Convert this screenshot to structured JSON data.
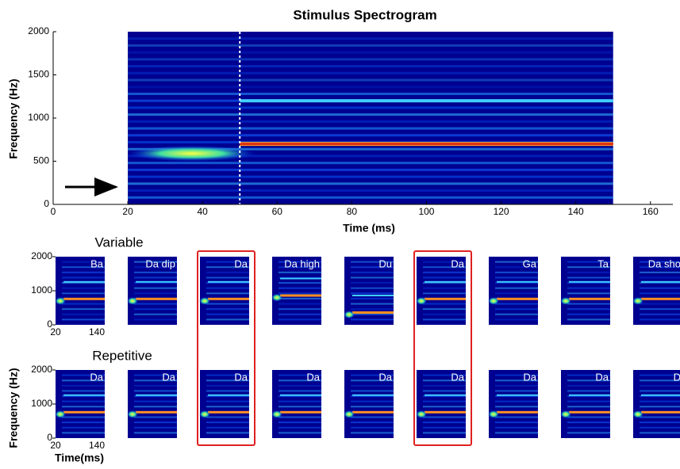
{
  "chart_data": [
    {
      "type": "spectrogram",
      "title": "Stimulus Spectrogram",
      "x_label": "Time (ms)",
      "y_label": "Frequency (Hz)",
      "xlim": [
        0,
        166
      ],
      "xticks": [
        0,
        20,
        40,
        60,
        80,
        100,
        120,
        140,
        160
      ],
      "ylim": [
        0,
        2000
      ],
      "yticks": [
        0,
        500,
        1000,
        1500,
        2000
      ],
      "time_range": [
        20,
        150
      ],
      "marker_time": 50
    },
    {
      "type": "spectrogram-grid",
      "y_label": "Frequency (Hz)",
      "x_label": "Time(ms)",
      "row_labels": [
        "Variable",
        "Repetitive"
      ],
      "rows": [
        [
          "Ba",
          "Da dip",
          "Da",
          "Da high",
          "Du",
          "Da",
          "Ga",
          "Ta",
          "Da sho"
        ],
        [
          "Da",
          "Da",
          "Da",
          "Da",
          "Da",
          "Da",
          "Da",
          "Da",
          "D"
        ]
      ],
      "ylim": [
        0,
        2000
      ],
      "yticks": [
        0,
        1000,
        2000
      ],
      "xticks": [
        20,
        140
      ]
    }
  ]
}
